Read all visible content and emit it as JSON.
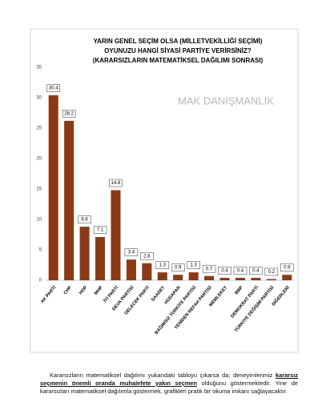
{
  "chart_data": {
    "type": "bar",
    "title_lines": [
      "YARIN GENEL SEÇİM OLSA (MİLLETVEKİLLİĞİ SEÇİMİ)",
      "OYUNUZU HANGİ SİYASİ PARTİYE VERİRSİNİZ?",
      "(KARARSIZLARIN MATEMATİKSEL DAĞILIMI SONRASI)"
    ],
    "watermark": "MAK DANIŞMANLIK",
    "categories": [
      "AK PARTİ",
      "CHP",
      "HDP",
      "MHP",
      "İYİ PARTİ",
      "DEVA PARTİSİ",
      "GELECEK PARTİ",
      "SAADET",
      "HÜDAPAR",
      "BAĞIMSIZ TÜRKİYE PARTİSİ",
      "YENİDEN REFAH PARTİSİ",
      "MEMLEKET",
      "BBP",
      "DEMOKRAT PARTİ",
      "TÜRKİYE DEĞİŞİM PARTİSİ",
      "DİĞERLERİ"
    ],
    "values": [
      30.4,
      26.2,
      8.8,
      7.1,
      14.8,
      3.4,
      2.8,
      1.3,
      0.9,
      1.3,
      0.7,
      0.4,
      0.4,
      0.4,
      0.2,
      0.9
    ],
    "color": "#8b3a17",
    "ylim": [
      0,
      35
    ],
    "yticks": [
      0,
      5,
      10,
      15,
      20,
      25,
      30,
      35
    ],
    "grid": false
  },
  "paragraph": {
    "before": "Kararsızların matematiksel dağılımı yukarıdaki tabloyu çıkarsa da; deneyimlerimiz ",
    "emphasis": "kararsız seçmenin önemli oranda muhalefete yakın seçmen",
    "after": " olduğunu göstermektedir. Yine de kararsızları matematiksel dağılımla göstermek, grafikleri pratik bir okuma imkanı sağlayacaktır."
  }
}
